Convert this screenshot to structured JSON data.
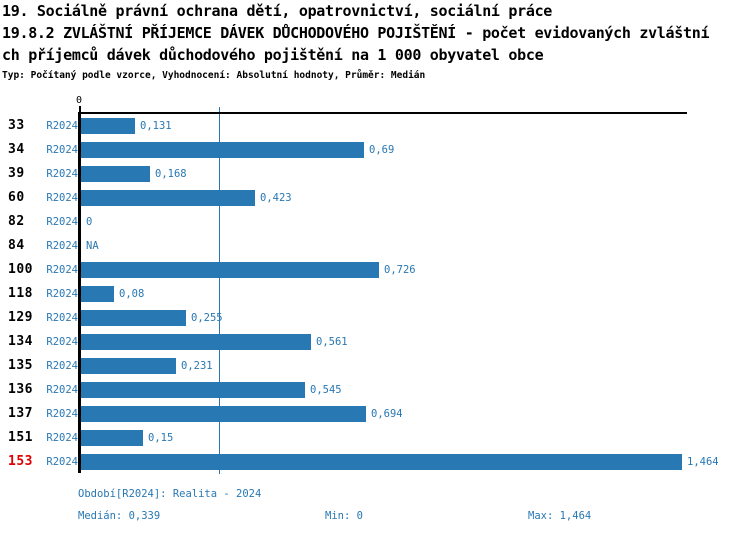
{
  "title": {
    "line1": "19. Sociálně právní ochrana dětí, opatrovnictví, sociální práce",
    "line2": "19.8.2 ZVLÁŠTNÍ PŘÍJEMCE DÁVEK DŮCHODOVÉHO POJIŠTĚNÍ - počet evidovaných zvláštní",
    "line3": "ch příjemců dávek důchodového pojištění na 1 000 obyvatel obce",
    "meta": "Typ: Počítaný podle vzorce, Vyhodnocení: Absolutní hodnoty, Průměr: Medián"
  },
  "chart_data": {
    "type": "bar",
    "orientation": "horizontal",
    "categories": [
      "33",
      "34",
      "39",
      "60",
      "82",
      "84",
      "100",
      "118",
      "129",
      "134",
      "135",
      "136",
      "137",
      "151",
      "153"
    ],
    "series": [
      {
        "name": "R2024",
        "values": [
          0.131,
          0.69,
          0.168,
          0.423,
          0,
          null,
          0.726,
          0.08,
          0.255,
          0.561,
          0.231,
          0.545,
          0.694,
          0.15,
          1.464
        ]
      }
    ],
    "value_labels": [
      "0,131",
      "0,69",
      "0,168",
      "0,423",
      "0",
      "NA",
      "0,726",
      "0,08",
      "0,255",
      "0,561",
      "0,231",
      "0,545",
      "0,694",
      "0,15",
      "1,464"
    ],
    "period_label": "R2024",
    "xlim": [
      0,
      1.48
    ],
    "x_tick_labels": [
      "0"
    ],
    "median_line_value": 0.339,
    "highlighted_category": "153",
    "bar_color": "#2878b4",
    "text_blue": "#2878b4",
    "highlight_color": "#dd0000",
    "grid": false,
    "legend": false
  },
  "footer": {
    "period_line": "Období[R2024]: Realita - 2024",
    "median": "Medián: 0,339",
    "min": "Min: 0",
    "max": "Max: 1,464"
  }
}
